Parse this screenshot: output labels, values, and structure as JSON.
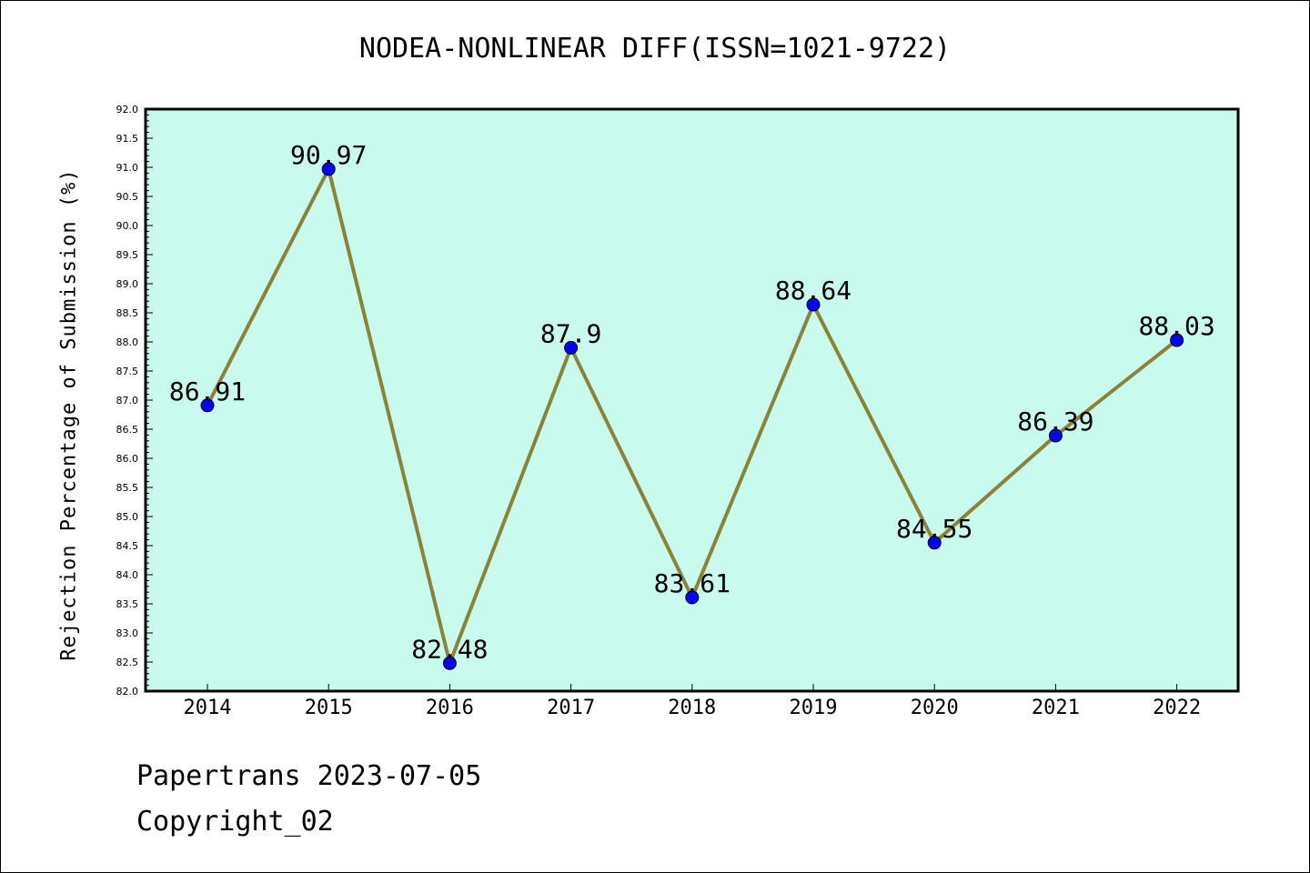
{
  "footer": {
    "line1": "Papertrans 2023-07-05",
    "line2": "Copyright_02"
  },
  "colors": {
    "plot_background": "#c8fbee",
    "line": "#8b8236",
    "marker": "#0000ff"
  },
  "chart_data": {
    "type": "line",
    "title": "NODEA-NONLINEAR DIFF(ISSN=1021-9722)",
    "xlabel": "",
    "ylabel": "Rejection Percentage of Submission (%)",
    "categories": [
      "2014",
      "2015",
      "2016",
      "2017",
      "2018",
      "2019",
      "2020",
      "2021",
      "2022"
    ],
    "series": [
      {
        "values": [
          86.91,
          90.97,
          82.48,
          87.9,
          83.61,
          88.64,
          84.55,
          86.39,
          88.03
        ],
        "data_labels": [
          "86.91",
          "90.97",
          "82.48",
          "87.9",
          "83.61",
          "88.64",
          "84.55",
          "86.39",
          "88.03"
        ]
      }
    ],
    "ylim": [
      82.0,
      92.0
    ],
    "yticks": [
      "82.0",
      "82.5",
      "83.0",
      "83.5",
      "84.0",
      "84.5",
      "85.0",
      "85.5",
      "86.0",
      "86.5",
      "87.0",
      "87.5",
      "88.0",
      "88.5",
      "89.0",
      "89.5",
      "90.0",
      "90.5",
      "91.0",
      "91.5",
      "92.0"
    ],
    "grid": false,
    "legend": "none"
  }
}
